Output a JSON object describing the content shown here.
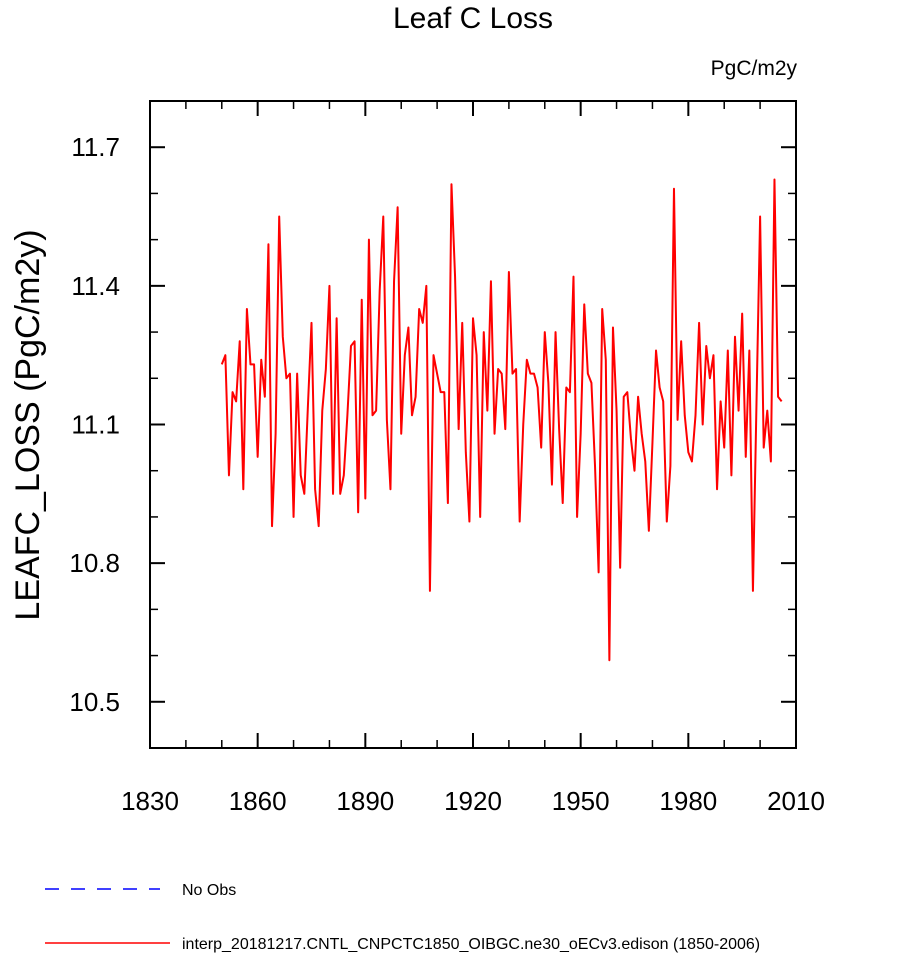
{
  "chart_data": {
    "type": "line",
    "title": "Leaf C Loss",
    "units_label": "PgC/m2y",
    "ylabel": "LEAFC_LOSS  (PgC/m2y)",
    "xlabel": "",
    "xlim": [
      1830,
      2010
    ],
    "ylim": [
      10.4,
      11.8
    ],
    "x_ticks": [
      1830,
      1860,
      1890,
      1920,
      1950,
      1980,
      2010
    ],
    "x_tick_labels": [
      "1830",
      "1860",
      "1890",
      "1920",
      "1950",
      "1980",
      "2010"
    ],
    "y_ticks": [
      10.5,
      10.8,
      11.1,
      11.4,
      11.7
    ],
    "y_tick_labels": [
      "10.5",
      "10.8",
      "11.1",
      "11.4",
      "11.7"
    ],
    "x_minor_step": 10,
    "y_minor_step": 0.1,
    "grid": false,
    "legend": [
      {
        "name": "No Obs",
        "color": "#0000ff",
        "dashed": true
      },
      {
        "name": "interp_20181217.CNTL_CNPCTC1850_OIBGC.ne30_oECv3.edison (1850-2006)",
        "color": "#ff0000",
        "dashed": false
      }
    ],
    "series": [
      {
        "name": "interp_20181217.CNTL_CNPCTC1850_OIBGC.ne30_oECv3.edison (1850-2006)",
        "color": "#ff0000",
        "x_start": 1850,
        "x_step": 1,
        "values": [
          11.23,
          11.25,
          10.99,
          11.17,
          11.15,
          11.28,
          10.96,
          11.35,
          11.23,
          11.23,
          11.03,
          11.24,
          11.16,
          11.49,
          10.88,
          11.08,
          11.55,
          11.29,
          11.2,
          11.21,
          10.9,
          11.21,
          10.99,
          10.95,
          11.14,
          11.32,
          10.96,
          10.88,
          11.13,
          11.22,
          11.4,
          10.95,
          11.33,
          10.95,
          10.99,
          11.12,
          11.27,
          11.28,
          10.91,
          11.37,
          10.94,
          11.5,
          11.12,
          11.13,
          11.39,
          11.55,
          11.11,
          10.96,
          11.41,
          11.57,
          11.08,
          11.25,
          11.31,
          11.12,
          11.16,
          11.35,
          11.32,
          11.4,
          10.74,
          11.25,
          11.21,
          11.17,
          11.17,
          10.93,
          11.62,
          11.42,
          11.09,
          11.32,
          11.04,
          10.89,
          11.33,
          11.25,
          10.9,
          11.3,
          11.13,
          11.41,
          11.08,
          11.22,
          11.21,
          11.09,
          11.43,
          11.21,
          11.22,
          10.89,
          11.1,
          11.24,
          11.21,
          11.21,
          11.18,
          11.05,
          11.3,
          11.19,
          10.97,
          11.3,
          11.09,
          10.93,
          11.18,
          11.17,
          11.42,
          10.9,
          11.08,
          11.36,
          11.21,
          11.19,
          11.01,
          10.78,
          11.35,
          11.24,
          10.59,
          11.31,
          11.13,
          10.79,
          11.16,
          11.17,
          11.07,
          11.0,
          11.16,
          11.08,
          11.02,
          10.87,
          11.06,
          11.26,
          11.18,
          11.15,
          10.89,
          11.01,
          11.61,
          11.11,
          11.28,
          11.12,
          11.04,
          11.02,
          11.12,
          11.32,
          11.1,
          11.27,
          11.2,
          11.25,
          10.96,
          11.15,
          11.05,
          11.26,
          10.99,
          11.29,
          11.13,
          11.34,
          11.03,
          11.26,
          10.74,
          11.15,
          11.55,
          11.05,
          11.13,
          11.02,
          11.63,
          11.16,
          11.15
        ]
      }
    ]
  }
}
